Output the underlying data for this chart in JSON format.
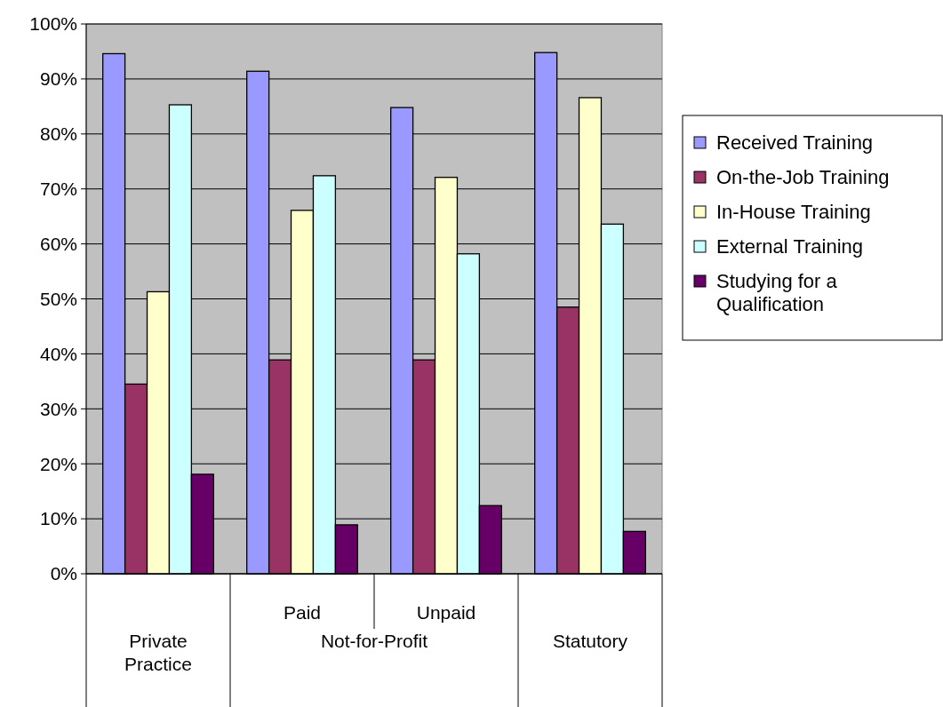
{
  "chart_data": {
    "type": "bar",
    "categories": [
      "Private Practice",
      "Paid",
      "Unpaid",
      "Statutory"
    ],
    "series": [
      {
        "name": "Received Training",
        "color": "#9999ff",
        "values": [
          94.6,
          91.4,
          84.8,
          94.8
        ]
      },
      {
        "name": "On-the-Job Training",
        "color": "#993366",
        "values": [
          34.5,
          38.9,
          38.9,
          48.5
        ]
      },
      {
        "name": "In-House Training",
        "color": "#ffffcc",
        "values": [
          51.3,
          66.1,
          72.1,
          86.6
        ]
      },
      {
        "name": "External Training",
        "color": "#ccffff",
        "values": [
          85.3,
          72.4,
          58.2,
          63.6
        ]
      },
      {
        "name": "Studying for a Qualification",
        "color": "#660066",
        "values": [
          18.1,
          8.9,
          12.4,
          7.7
        ]
      }
    ],
    "ylim": [
      0,
      100
    ],
    "yticks": [
      {
        "value": 0,
        "label": "0%"
      },
      {
        "value": 10,
        "label": "10%"
      },
      {
        "value": 20,
        "label": "20%"
      },
      {
        "value": 30,
        "label": "30%"
      },
      {
        "value": 40,
        "label": "40%"
      },
      {
        "value": 50,
        "label": "50%"
      },
      {
        "value": 60,
        "label": "60%"
      },
      {
        "value": 70,
        "label": "70%"
      },
      {
        "value": 80,
        "label": "80%"
      },
      {
        "value": 90,
        "label": "90%"
      },
      {
        "value": 100,
        "label": "100%"
      }
    ],
    "grid": "y",
    "legend": "right",
    "annotations": [
      "Not-for-Profit"
    ]
  }
}
